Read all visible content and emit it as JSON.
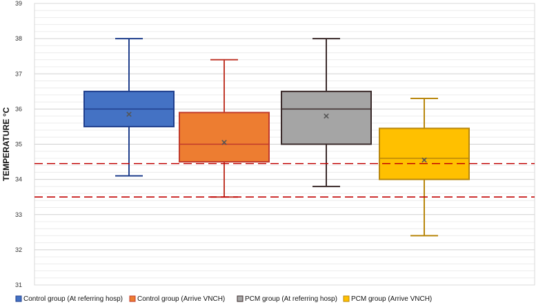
{
  "chart_data": {
    "type": "box",
    "title": "",
    "xlabel": "",
    "ylabel": "TEMPERATURE °C",
    "ylim": [
      31,
      39
    ],
    "yticks": [
      31,
      32,
      33,
      34,
      35,
      36,
      37,
      38,
      39
    ],
    "minor_gridlines_per_unit": 5,
    "grid": true,
    "legend_position": "bottom",
    "series": [
      {
        "name": "Control group (At referring hosp)",
        "min": 34.1,
        "q1": 35.5,
        "median": 36.0,
        "q3": 36.5,
        "max": 38.0,
        "mean": 35.85,
        "fill": "#4472C4",
        "stroke": "#1F3E8C"
      },
      {
        "name": "Control group (Arrive VNCH)",
        "min": 33.5,
        "q1": 34.5,
        "median": 35.0,
        "q3": 35.9,
        "max": 37.4,
        "mean": 35.05,
        "fill": "#ED7D31",
        "stroke": "#C0392B"
      },
      {
        "name": "PCM group (At referring hosp)",
        "min": 33.8,
        "q1": 35.0,
        "median": 36.0,
        "q3": 36.5,
        "max": 38.0,
        "mean": 35.8,
        "fill": "#A5A5A5",
        "stroke": "#3A2A2A"
      },
      {
        "name": "PCM group (Arrive VNCH)",
        "min": 32.4,
        "q1": 34.0,
        "median": 34.6,
        "q3": 35.45,
        "max": 36.3,
        "mean": 34.55,
        "fill": "#FFC000",
        "stroke": "#B8860B"
      }
    ],
    "reference_lines": [
      {
        "y": 34.45,
        "style": "dashed",
        "color": "#C00000"
      },
      {
        "y": 33.5,
        "style": "dashed",
        "color": "#C00000"
      }
    ]
  }
}
